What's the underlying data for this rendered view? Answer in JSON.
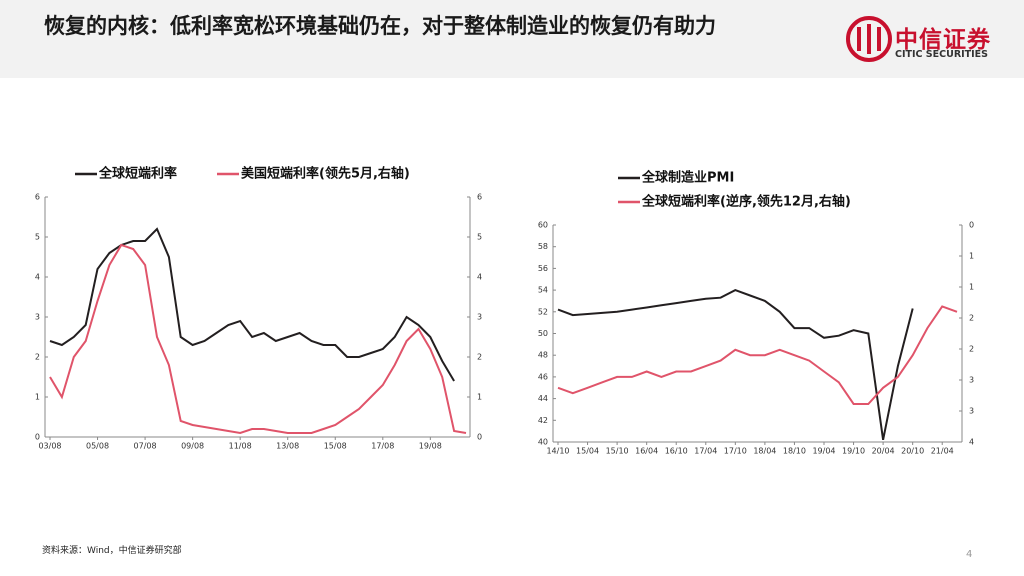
{
  "header": {
    "title": "恢复的内核：低利率宽松环境基础仍在，对于整体制造业的恢复仍有助力"
  },
  "logo": {
    "name": "中信证券",
    "english": "CITIC SECURITIES"
  },
  "footer": {
    "source": "资料来源：Wind，中信证券研究部"
  },
  "page_number": "4",
  "chart_data": [
    {
      "type": "line",
      "categories": [
        "03/08",
        null,
        null,
        null,
        "05/08",
        null,
        null,
        null,
        "07/08",
        null,
        null,
        null,
        "09/08",
        null,
        null,
        null,
        "11/08",
        null,
        null,
        null,
        "13/08",
        null,
        null,
        null,
        "15/08",
        null,
        null,
        null,
        "17/08",
        null,
        null,
        null,
        "19/08",
        null,
        null,
        null
      ],
      "series": [
        {
          "name": "全球短端利率",
          "color": "#231f20",
          "values": [
            2.4,
            2.3,
            2.5,
            2.8,
            4.2,
            4.6,
            4.8,
            4.9,
            4.9,
            5.2,
            4.5,
            2.5,
            2.3,
            2.4,
            2.6,
            2.8,
            2.9,
            2.5,
            2.6,
            2.4,
            2.5,
            2.6,
            2.4,
            2.3,
            2.3,
            2.0,
            2.0,
            2.1,
            2.2,
            2.5,
            3.0,
            2.8,
            2.5,
            1.9,
            1.4,
            null
          ]
        },
        {
          "name": "美国短端利率(领先5月,右轴)",
          "color": "#e0546a",
          "axis": "y2",
          "values": [
            1.5,
            1.0,
            2.0,
            2.4,
            3.4,
            4.3,
            4.8,
            4.7,
            4.3,
            2.5,
            1.8,
            0.4,
            0.3,
            0.25,
            0.2,
            0.15,
            0.1,
            0.2,
            0.2,
            0.15,
            0.1,
            0.1,
            0.1,
            0.2,
            0.3,
            0.5,
            0.7,
            1.0,
            1.3,
            1.8,
            2.4,
            2.7,
            2.2,
            1.5,
            0.15,
            0.1
          ]
        }
      ],
      "ylim": [
        0,
        6
      ],
      "yticks": [
        0,
        1,
        2,
        3,
        4,
        5,
        6
      ],
      "y2lim": [
        0,
        6
      ],
      "y2ticks": [
        0,
        1,
        2,
        3,
        4,
        5,
        6
      ],
      "y2_reversed": false,
      "legend": "top"
    },
    {
      "type": "line",
      "categories": [
        "14/10",
        null,
        "15/04",
        null,
        "15/10",
        null,
        "16/04",
        null,
        "16/10",
        null,
        "17/04",
        null,
        "17/10",
        null,
        "18/04",
        null,
        "18/10",
        null,
        "19/04",
        null,
        "19/10",
        null,
        "20/04",
        null,
        "20/10",
        null,
        "21/04",
        null
      ],
      "series": [
        {
          "name": "全球制造业PMI",
          "color": "#231f20",
          "values": [
            52.2,
            51.7,
            51.8,
            51.9,
            52.0,
            52.2,
            52.4,
            52.6,
            52.8,
            53.0,
            53.2,
            53.3,
            54.0,
            53.5,
            53.0,
            52.0,
            50.5,
            50.5,
            49.6,
            49.8,
            50.3,
            50.0,
            40.2,
            47.0,
            52.3,
            null,
            null,
            null
          ]
        },
        {
          "name": "全球短端利率(逆序,领先12月,右轴)",
          "color": "#e0546a",
          "axis": "y2",
          "values": [
            3.0,
            3.1,
            3.0,
            2.9,
            2.8,
            2.8,
            2.7,
            2.8,
            2.7,
            2.7,
            2.6,
            2.5,
            2.3,
            2.4,
            2.4,
            2.3,
            2.4,
            2.5,
            2.7,
            2.9,
            3.3,
            3.3,
            3.0,
            2.8,
            2.4,
            1.9,
            1.5,
            1.6
          ]
        }
      ],
      "ylim": [
        40,
        60
      ],
      "yticks": [
        40,
        42,
        44,
        46,
        48,
        50,
        52,
        54,
        56,
        58,
        60
      ],
      "y2lim": [
        0,
        4
      ],
      "y2ticks": [
        0,
        {
          "value": 0.5714,
          "label": "1"
        },
        {
          "value": 1.1429,
          "label": "1"
        },
        {
          "value": 1.7143,
          "label": "2"
        },
        {
          "value": 2.2857,
          "label": "2"
        },
        {
          "value": 2.8571,
          "label": "3"
        },
        {
          "value": 3.4286,
          "label": "3"
        },
        4
      ],
      "y2_reversed": true,
      "legend": "top-stacked"
    }
  ]
}
